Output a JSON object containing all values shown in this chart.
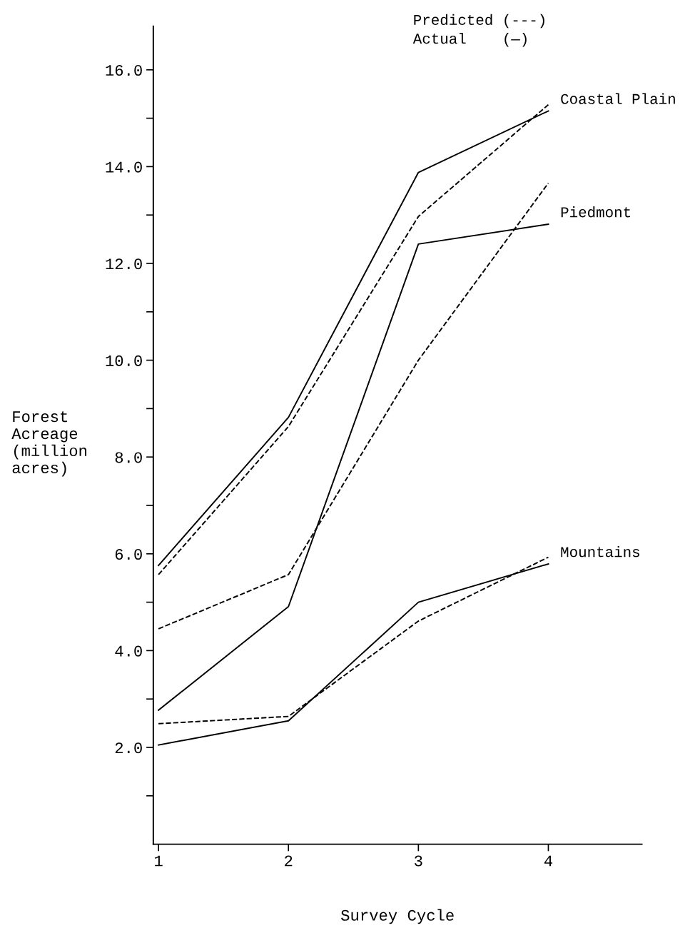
{
  "chart_data": {
    "type": "line",
    "xlabel": "Survey Cycle",
    "ylabel": "Forest\nAcreage\n(million\nacres)",
    "x": [
      1,
      2,
      3,
      4
    ],
    "series": [
      {
        "name": "Coastal Plain",
        "color": "#000000",
        "line_style": "solid",
        "values": [
          5.76,
          8.82,
          13.88,
          15.15
        ]
      },
      {
        "color": "#000000",
        "line_style": "dashed",
        "values": [
          5.57,
          8.63,
          12.97,
          15.28
        ]
      },
      {
        "name": "Piedmont",
        "color": "#000000",
        "line_style": "solid",
        "values": [
          2.77,
          4.91,
          12.4,
          12.81
        ]
      },
      {
        "color": "#000000",
        "line_style": "dashed",
        "values": [
          4.45,
          5.57,
          10.0,
          13.66
        ]
      },
      {
        "name": "Mountains",
        "color": "#000000",
        "line_style": "solid",
        "values": [
          2.05,
          2.55,
          5.0,
          5.79
        ]
      },
      {
        "color": "#000000",
        "line_style": "dashed",
        "values": [
          2.49,
          2.64,
          4.61,
          5.93
        ]
      }
    ],
    "annotations": [
      "Predicted (---)",
      "Actual    (—)"
    ],
    "xlim": [
      0.96,
      4.72
    ],
    "xticks": [
      1,
      2,
      3,
      4
    ],
    "ylim": [
      0,
      16.9
    ],
    "yticks": [
      {
        "value": 1,
        "label": null
      },
      {
        "value": 2,
        "label": "2.0"
      },
      {
        "value": 3,
        "label": null
      },
      {
        "value": 4,
        "label": "4.0"
      },
      {
        "value": 5,
        "label": null
      },
      {
        "value": 6,
        "label": "6.0"
      },
      {
        "value": 7,
        "label": null
      },
      {
        "value": 8,
        "label": "8.0"
      },
      {
        "value": 9,
        "label": null
      },
      {
        "value": 10,
        "label": "10.0"
      },
      {
        "value": 11,
        "label": null
      },
      {
        "value": 12,
        "label": "12.0"
      },
      {
        "value": 13,
        "label": null
      },
      {
        "value": 14,
        "label": "14.0"
      },
      {
        "value": 15,
        "label": null
      },
      {
        "value": 16,
        "label": "16.0"
      }
    ],
    "grid": false,
    "legend": false
  }
}
